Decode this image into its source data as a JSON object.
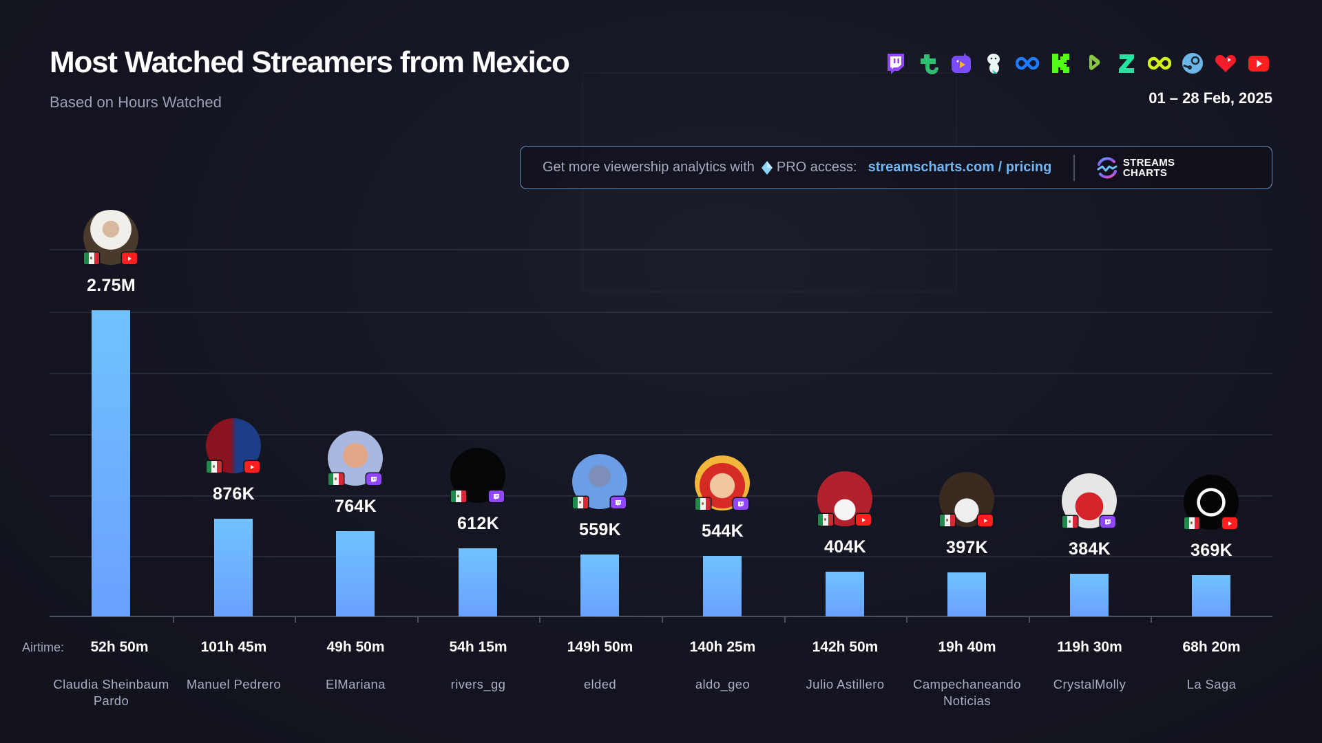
{
  "header": {
    "title": "Most Watched Streamers from Mexico",
    "subtitle": "Based on Hours Watched",
    "date_range": "01 – 28 Feb, 2025",
    "platform_icons": [
      {
        "name": "twitch-icon",
        "color": "#9146ff"
      },
      {
        "name": "trovo-icon",
        "color": "#2fbf71"
      },
      {
        "name": "nimo-icon",
        "color": "#7b4cff"
      },
      {
        "name": "bigo-live-icon",
        "color": "#e9f6f6"
      },
      {
        "name": "soop-icon",
        "color": "#1e7bff"
      },
      {
        "name": "kick-icon",
        "color": "#53fc18"
      },
      {
        "name": "rumble-icon",
        "color": "#85c742"
      },
      {
        "name": "z-platform-icon",
        "color": "#24e3a0"
      },
      {
        "name": "chzzk-icon",
        "color": "#d4f21b"
      },
      {
        "name": "steam-icon",
        "color": "#6cb6e8"
      },
      {
        "name": "heart-platform-icon",
        "color": "#f51d2c"
      },
      {
        "name": "youtube-icon",
        "color": "#ff1f1f"
      }
    ]
  },
  "promo": {
    "text": "Get more viewership analytics with",
    "pro_label": "PRO access:",
    "link_text": "streamscharts.com / pricing",
    "logo_line1": "STREAMS",
    "logo_line2": "CHARTS"
  },
  "axis": {
    "airtime_label": "Airtime:"
  },
  "colors": {
    "background": "#13141f",
    "bar_top": "#70c2ff",
    "bar_bottom": "#6aa0ff",
    "link": "#6fb6f5",
    "promo_border": "#6b8fc4"
  },
  "streamers": [
    {
      "name": "Claudia Sheinbaum Pardo",
      "value_label": "2.75M",
      "airtime": "52h 50m",
      "platform": "youtube",
      "country": "MX"
    },
    {
      "name": "Manuel Pedrero",
      "value_label": "876K",
      "airtime": "101h 45m",
      "platform": "youtube",
      "country": "MX"
    },
    {
      "name": "ElMariana",
      "value_label": "764K",
      "airtime": "49h 50m",
      "platform": "twitch",
      "country": "MX"
    },
    {
      "name": "rivers_gg",
      "value_label": "612K",
      "airtime": "54h 15m",
      "platform": "twitch",
      "country": "MX"
    },
    {
      "name": "elded",
      "value_label": "559K",
      "airtime": "149h 50m",
      "platform": "twitch",
      "country": "MX"
    },
    {
      "name": "aldo_geo",
      "value_label": "544K",
      "airtime": "140h 25m",
      "platform": "twitch",
      "country": "MX"
    },
    {
      "name": "Julio Astillero",
      "value_label": "404K",
      "airtime": "142h 50m",
      "platform": "youtube",
      "country": "MX"
    },
    {
      "name": "Campechaneando Noticias",
      "value_label": "397K",
      "airtime": "19h 40m",
      "platform": "youtube",
      "country": "MX"
    },
    {
      "name": "CrystalMolly",
      "value_label": "384K",
      "airtime": "119h 30m",
      "platform": "twitch",
      "country": "MX"
    },
    {
      "name": "La Saga",
      "value_label": "369K",
      "airtime": "68h 20m",
      "platform": "youtube",
      "country": "MX"
    }
  ],
  "chart_data": {
    "type": "bar",
    "title": "Most Watched Streamers from Mexico",
    "subtitle": "Based on Hours Watched",
    "period": "01 – 28 Feb, 2025",
    "xlabel": "",
    "ylabel": "Hours Watched",
    "categories": [
      "Claudia Sheinbaum Pardo",
      "Manuel Pedrero",
      "ElMariana",
      "rivers_gg",
      "elded",
      "aldo_geo",
      "Julio Astillero",
      "Campechaneando Noticias",
      "CrystalMolly",
      "La Saga"
    ],
    "values": [
      2750000,
      876000,
      764000,
      612000,
      559000,
      544000,
      404000,
      397000,
      384000,
      369000
    ],
    "value_labels": [
      "2.75M",
      "876K",
      "764K",
      "612K",
      "559K",
      "544K",
      "404K",
      "397K",
      "384K",
      "369K"
    ],
    "airtime": [
      "52h 50m",
      "101h 45m",
      "49h 50m",
      "54h 15m",
      "149h 50m",
      "140h 25m",
      "142h 50m",
      "19h 40m",
      "119h 30m",
      "68h 20m"
    ],
    "platforms": [
      "YouTube",
      "YouTube",
      "Twitch",
      "Twitch",
      "Twitch",
      "Twitch",
      "YouTube",
      "YouTube",
      "Twitch",
      "YouTube"
    ],
    "ylim": [
      0,
      2750000
    ],
    "grid": true,
    "legend": "none"
  }
}
